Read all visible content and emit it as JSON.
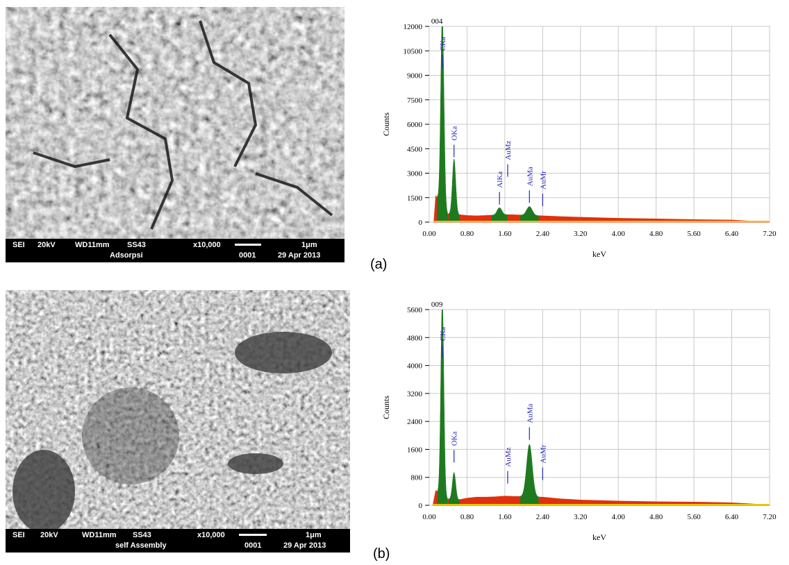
{
  "panels": [
    {
      "label": "(a)",
      "sem": {
        "mode": "SEI",
        "voltage": "20kV",
        "wd": "WD11mm",
        "code": "SS43",
        "mag": "x10,000",
        "scale": "1μm",
        "title": "Adsorpsi",
        "frame": "0001",
        "date": "29 Apr 2013"
      }
    },
    {
      "label": "(b)",
      "sem": {
        "mode": "SEI",
        "voltage": "20kV",
        "wd": "WD11mm",
        "code": "SS43",
        "mag": "x10,000",
        "scale": "1μm",
        "title": "self Assembly",
        "frame": "0001",
        "date": "29 Apr 2013"
      }
    }
  ],
  "chart_data": [
    {
      "type": "area",
      "title": "",
      "spectrum_id": "004",
      "xlabel": "keV",
      "ylabel": "Counts",
      "xlim": [
        0,
        7.2
      ],
      "ylim": [
        0,
        12000
      ],
      "xticks": [
        "0.00",
        "0.80",
        "1.60",
        "2.40",
        "3.20",
        "4.00",
        "4.80",
        "5.60",
        "6.40",
        "7.20"
      ],
      "yticks": [
        "0",
        "1500",
        "3000",
        "4500",
        "6000",
        "7500",
        "9000",
        "10500",
        "12000"
      ],
      "grid": true,
      "colors": {
        "background": "#e03010",
        "peaks": "#1f7a1f",
        "labels": "#2424b8",
        "baseline": "#e8c800"
      },
      "background": {
        "x": [
          0.1,
          0.14,
          0.18,
          0.22,
          0.3,
          0.4,
          0.5,
          0.6,
          0.8,
          1.0,
          1.2,
          1.4,
          1.6,
          1.8,
          2.0,
          2.2,
          2.4,
          2.8,
          3.2,
          3.6,
          4.0,
          4.8,
          5.6,
          6.4,
          6.8,
          7.2
        ],
        "y": [
          0,
          1600,
          1400,
          700,
          550,
          500,
          480,
          460,
          400,
          380,
          400,
          430,
          450,
          440,
          420,
          400,
          380,
          330,
          290,
          260,
          230,
          190,
          150,
          120,
          60,
          0
        ]
      },
      "peaks": [
        {
          "name": "CKa",
          "center": 0.277,
          "height": 12000,
          "width": 0.035
        },
        {
          "name": "OKa",
          "center": 0.525,
          "height": 3400,
          "width": 0.035
        },
        {
          "name": "AlKa",
          "center": 1.486,
          "height": 450,
          "width": 0.05
        },
        {
          "name": "AuMa",
          "center": 2.12,
          "height": 550,
          "width": 0.06
        }
      ],
      "peak_labels": [
        {
          "text": "CKa",
          "x": 0.277,
          "y": 10500
        },
        {
          "text": "OKa",
          "x": 0.525,
          "y": 5000
        },
        {
          "text": "AlKa",
          "x": 1.486,
          "y": 2100
        },
        {
          "text": "AuMz",
          "x": 1.66,
          "y": 3800
        },
        {
          "text": "AuMa",
          "x": 2.12,
          "y": 2200
        },
        {
          "text": "AuMr",
          "x": 2.4,
          "y": 2000
        }
      ],
      "markers": [
        0.277,
        0.525,
        1.486,
        1.66,
        2.12,
        2.4
      ]
    },
    {
      "type": "area",
      "title": "",
      "spectrum_id": "009",
      "xlabel": "keV",
      "ylabel": "Counts",
      "xlim": [
        0,
        7.2
      ],
      "ylim": [
        0,
        5600
      ],
      "xticks": [
        "0.00",
        "0.80",
        "1.60",
        "2.40",
        "3.20",
        "4.00",
        "4.80",
        "5.60",
        "6.40",
        "7.20"
      ],
      "yticks": [
        "0",
        "800",
        "1600",
        "2400",
        "3200",
        "4000",
        "4800",
        "5600"
      ],
      "grid": true,
      "colors": {
        "background": "#e03010",
        "peaks": "#1f7a1f",
        "labels": "#2424b8",
        "baseline": "#e8c800"
      },
      "background": {
        "x": [
          0.08,
          0.14,
          0.2,
          0.3,
          0.4,
          0.6,
          0.8,
          1.0,
          1.2,
          1.4,
          1.6,
          1.8,
          2.0,
          2.4,
          2.8,
          3.2,
          4.0,
          4.8,
          5.6,
          6.4,
          6.8,
          7.2
        ],
        "y": [
          0,
          420,
          350,
          250,
          180,
          150,
          200,
          230,
          230,
          240,
          260,
          250,
          250,
          230,
          180,
          150,
          120,
          100,
          90,
          70,
          40,
          0
        ]
      },
      "peaks": [
        {
          "name": "CKa",
          "center": 0.277,
          "height": 5600,
          "width": 0.032
        },
        {
          "name": "OKa",
          "center": 0.525,
          "height": 780,
          "width": 0.035
        },
        {
          "name": "AuMa",
          "center": 2.12,
          "height": 1500,
          "width": 0.06
        }
      ],
      "peak_labels": [
        {
          "text": "CKa",
          "x": 0.277,
          "y": 4700
        },
        {
          "text": "OKa",
          "x": 0.525,
          "y": 1700
        },
        {
          "text": "AuMz",
          "x": 1.66,
          "y": 1100
        },
        {
          "text": "AuMa",
          "x": 2.12,
          "y": 2350
        },
        {
          "text": "AuMr",
          "x": 2.4,
          "y": 1200
        }
      ],
      "markers": [
        0.277,
        0.525,
        1.66,
        2.12,
        2.4
      ]
    }
  ]
}
